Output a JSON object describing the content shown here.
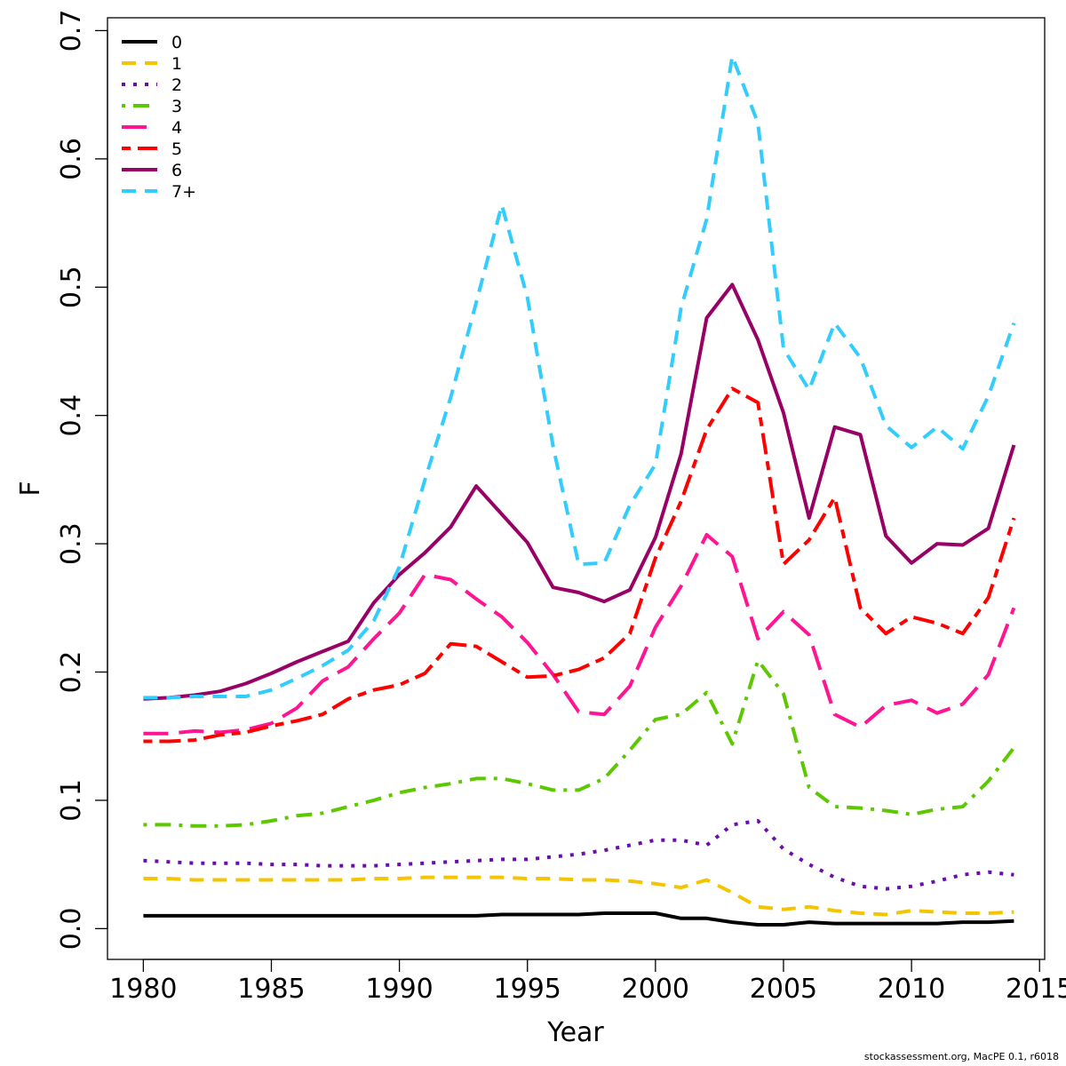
{
  "chart_data": {
    "type": "line",
    "xlabel": "Year",
    "ylabel": "F",
    "xlim": [
      1978.6,
      2015.2
    ],
    "ylim": [
      -0.024,
      0.71
    ],
    "xticks": [
      1980,
      1985,
      1990,
      1995,
      2000,
      2005,
      2010,
      2015
    ],
    "yticks": [
      0.0,
      0.1,
      0.2,
      0.3,
      0.4,
      0.5,
      0.6,
      0.7
    ],
    "ytick_labels": [
      "0.0",
      "0.1",
      "0.2",
      "0.3",
      "0.4",
      "0.5",
      "0.6",
      "0.7"
    ],
    "grid": false,
    "legend_position": "top-left",
    "x": [
      1980,
      1981,
      1982,
      1983,
      1984,
      1985,
      1986,
      1987,
      1988,
      1989,
      1990,
      1991,
      1992,
      1993,
      1994,
      1995,
      1996,
      1997,
      1998,
      1999,
      2000,
      2001,
      2002,
      2003,
      2004,
      2005,
      2006,
      2007,
      2008,
      2009,
      2010,
      2011,
      2012,
      2013,
      2014
    ],
    "series": [
      {
        "name": "0",
        "color": "#000000",
        "dash": "solid",
        "values": [
          0.01,
          0.01,
          0.01,
          0.01,
          0.01,
          0.01,
          0.01,
          0.01,
          0.01,
          0.01,
          0.01,
          0.01,
          0.01,
          0.01,
          0.011,
          0.011,
          0.011,
          0.011,
          0.012,
          0.012,
          0.012,
          0.008,
          0.008,
          0.005,
          0.003,
          0.003,
          0.005,
          0.004,
          0.004,
          0.004,
          0.004,
          0.004,
          0.005,
          0.005,
          0.006
        ]
      },
      {
        "name": "1",
        "color": "#f5c400",
        "dash": "dashed",
        "values": [
          0.039,
          0.039,
          0.038,
          0.038,
          0.038,
          0.038,
          0.038,
          0.038,
          0.038,
          0.039,
          0.039,
          0.04,
          0.04,
          0.04,
          0.04,
          0.039,
          0.039,
          0.038,
          0.038,
          0.037,
          0.035,
          0.032,
          0.038,
          0.028,
          0.017,
          0.015,
          0.017,
          0.014,
          0.012,
          0.011,
          0.014,
          0.013,
          0.012,
          0.012,
          0.013
        ]
      },
      {
        "name": "2",
        "color": "#6a0dad",
        "dash": "dotted",
        "values": [
          0.053,
          0.052,
          0.051,
          0.051,
          0.051,
          0.05,
          0.05,
          0.049,
          0.049,
          0.049,
          0.05,
          0.051,
          0.052,
          0.053,
          0.054,
          0.054,
          0.056,
          0.058,
          0.061,
          0.065,
          0.069,
          0.069,
          0.065,
          0.081,
          0.084,
          0.062,
          0.05,
          0.04,
          0.033,
          0.031,
          0.033,
          0.037,
          0.042,
          0.044,
          0.042
        ]
      },
      {
        "name": "3",
        "color": "#5cc800",
        "dash": "dotdash",
        "values": [
          0.081,
          0.081,
          0.08,
          0.08,
          0.081,
          0.084,
          0.088,
          0.09,
          0.095,
          0.1,
          0.106,
          0.11,
          0.113,
          0.117,
          0.117,
          0.113,
          0.108,
          0.108,
          0.117,
          0.139,
          0.163,
          0.167,
          0.184,
          0.144,
          0.209,
          0.183,
          0.11,
          0.095,
          0.094,
          0.092,
          0.089,
          0.093,
          0.095,
          0.115,
          0.141
        ]
      },
      {
        "name": "4",
        "color": "#ff1493",
        "dash": "longdash",
        "values": [
          0.152,
          0.152,
          0.154,
          0.153,
          0.155,
          0.16,
          0.172,
          0.193,
          0.204,
          0.226,
          0.246,
          0.276,
          0.272,
          0.257,
          0.243,
          0.223,
          0.198,
          0.169,
          0.167,
          0.189,
          0.235,
          0.267,
          0.307,
          0.29,
          0.226,
          0.247,
          0.229,
          0.167,
          0.157,
          0.174,
          0.178,
          0.168,
          0.175,
          0.198,
          0.25
        ]
      },
      {
        "name": "5",
        "color": "#ff0000",
        "dash": "twodash",
        "values": [
          0.146,
          0.146,
          0.147,
          0.151,
          0.153,
          0.158,
          0.162,
          0.167,
          0.179,
          0.186,
          0.19,
          0.199,
          0.222,
          0.22,
          0.208,
          0.196,
          0.197,
          0.202,
          0.211,
          0.23,
          0.289,
          0.333,
          0.389,
          0.421,
          0.41,
          0.284,
          0.303,
          0.336,
          0.25,
          0.23,
          0.243,
          0.238,
          0.23,
          0.258,
          0.32
        ]
      },
      {
        "name": "6",
        "color": "#990066",
        "dash": "solid",
        "values": [
          0.179,
          0.18,
          0.182,
          0.185,
          0.191,
          0.199,
          0.208,
          0.216,
          0.224,
          0.254,
          0.276,
          0.293,
          0.313,
          0.345,
          0.323,
          0.301,
          0.266,
          0.262,
          0.255,
          0.264,
          0.305,
          0.37,
          0.476,
          0.502,
          0.459,
          0.402,
          0.32,
          0.391,
          0.385,
          0.306,
          0.285,
          0.3,
          0.299,
          0.312,
          0.377
        ]
      },
      {
        "name": "7+",
        "color": "#33ccff",
        "dash": "dashed",
        "values": [
          0.18,
          0.18,
          0.181,
          0.181,
          0.181,
          0.186,
          0.195,
          0.205,
          0.217,
          0.24,
          0.282,
          0.35,
          0.414,
          0.488,
          0.564,
          0.492,
          0.376,
          0.284,
          0.285,
          0.33,
          0.362,
          0.484,
          0.553,
          0.68,
          0.628,
          0.452,
          0.42,
          0.472,
          0.445,
          0.392,
          0.375,
          0.391,
          0.374,
          0.415,
          0.472
        ]
      }
    ]
  },
  "credit": "stockassessment.org, MacPE 0.1, r6018"
}
